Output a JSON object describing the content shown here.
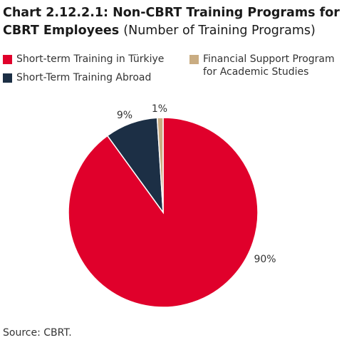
{
  "title": {
    "bold": "Chart 2.12.2.1: Non-CBRT Training Programs for CBRT Employees",
    "light": "(Number of Training Programs)"
  },
  "chart_data": {
    "type": "pie",
    "categories": [
      "Short-term Training in Türkiye",
      "Short-Term Training Abroad",
      "Financial Support Program for Academic Studies"
    ],
    "values": [
      90,
      9,
      1
    ],
    "data_labels": [
      "90%",
      "9%",
      "1%"
    ],
    "colors": [
      "#e0002b",
      "#1c2f45",
      "#c9ac82"
    ],
    "legend_position": "top",
    "start_angle_deg": 0,
    "direction": "clockwise"
  },
  "legend": {
    "items": [
      {
        "label_lines": [
          "Short-term Training in Türkiye"
        ],
        "color": "#e0002b"
      },
      {
        "label_lines": [
          "Short-Term Training Abroad"
        ],
        "color": "#1c2f45"
      },
      {
        "label_lines": [
          "Financial Support Program",
          "for Academic Studies"
        ],
        "color": "#c9ac82"
      }
    ]
  },
  "source": "Source: CBRT."
}
